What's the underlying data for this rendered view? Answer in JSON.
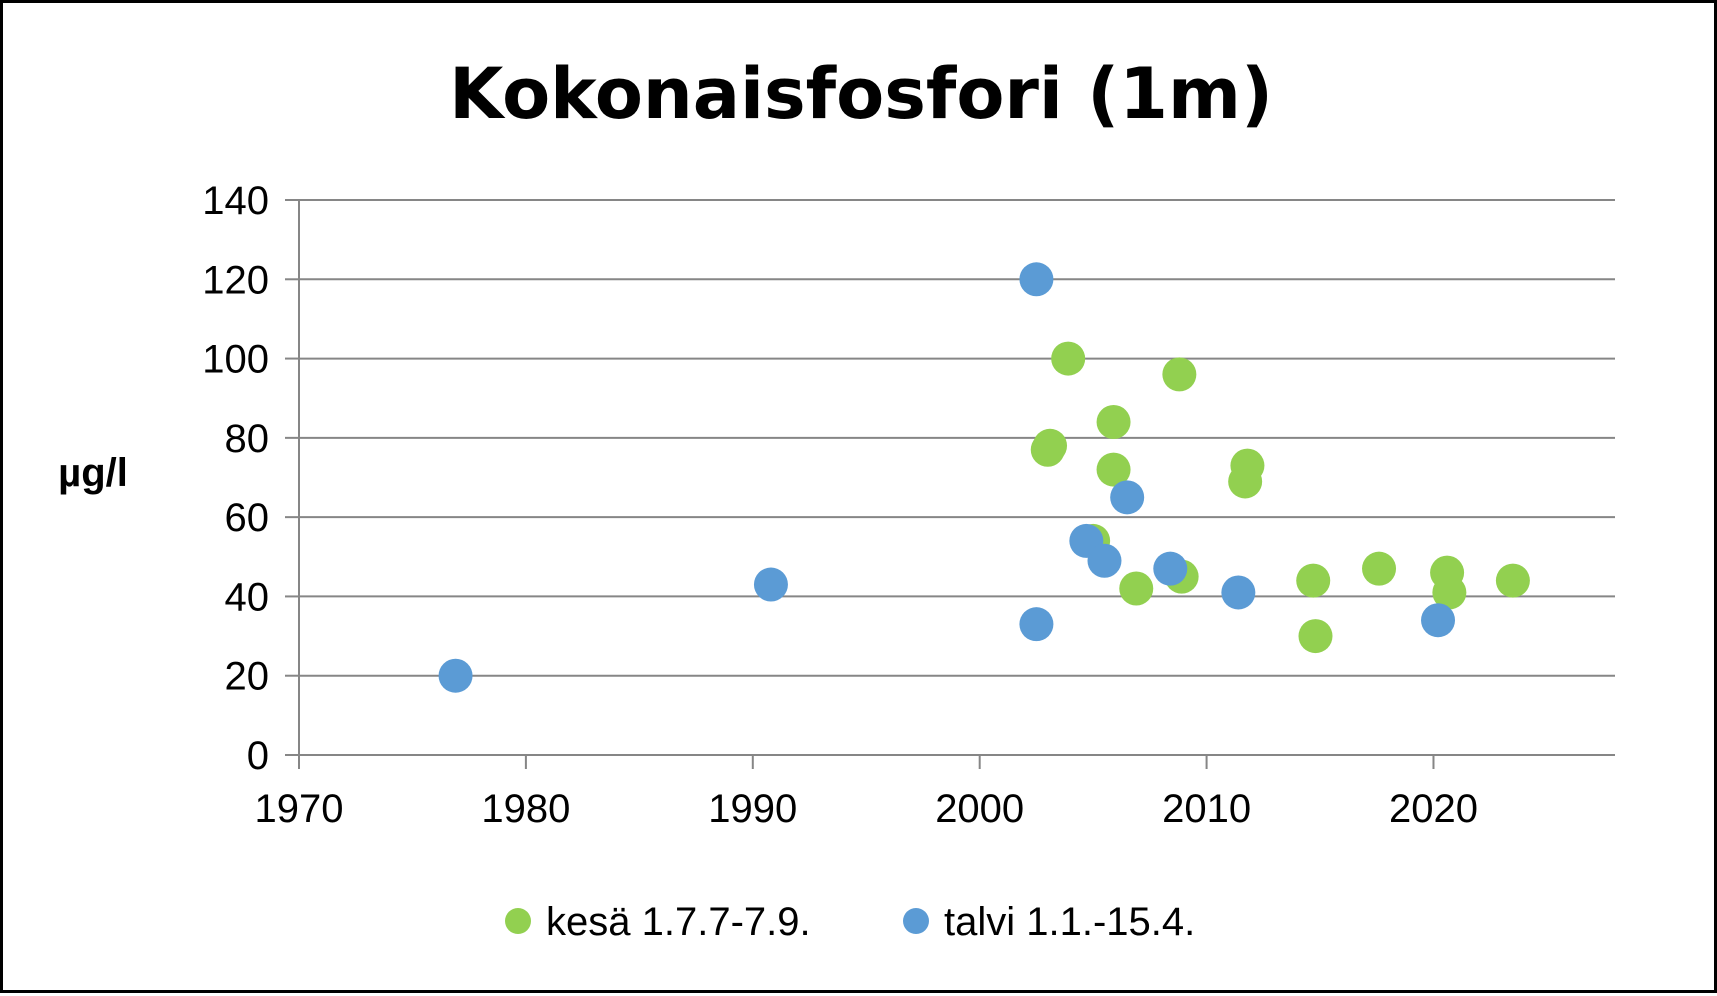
{
  "chart_data": {
    "type": "scatter",
    "title": "Kokonaisfosfori (1m)",
    "xlabel": "",
    "ylabel": "µg/l",
    "xlim": [
      1970,
      2028
    ],
    "ylim": [
      0,
      140
    ],
    "x_ticks": [
      "1970",
      "1980",
      "1990",
      "2000",
      "2010",
      "2020"
    ],
    "y_ticks": [
      "0",
      "20",
      "40",
      "60",
      "80",
      "100",
      "120",
      "140"
    ],
    "grid": true,
    "legend_position": "bottom",
    "series": [
      {
        "name": "kesä 1.7.7-7.9.",
        "color": "#92d050",
        "points": [
          [
            2003.0,
            77
          ],
          [
            2003.1,
            78
          ],
          [
            2003.9,
            100
          ],
          [
            2005.0,
            54
          ],
          [
            2005.9,
            84
          ],
          [
            2005.9,
            72
          ],
          [
            2006.9,
            42
          ],
          [
            2008.8,
            96
          ],
          [
            2008.9,
            45
          ],
          [
            2011.7,
            69
          ],
          [
            2011.8,
            73
          ],
          [
            2014.7,
            44
          ],
          [
            2014.8,
            30
          ],
          [
            2017.6,
            47
          ],
          [
            2020.6,
            46
          ],
          [
            2020.7,
            41
          ],
          [
            2023.5,
            44
          ]
        ]
      },
      {
        "name": "talvi 1.1.-15.4.",
        "color": "#5b9bd5",
        "points": [
          [
            1976.9,
            20
          ],
          [
            1990.8,
            43
          ],
          [
            2002.5,
            120
          ],
          [
            2002.5,
            33
          ],
          [
            2004.7,
            54
          ],
          [
            2005.5,
            49
          ],
          [
            2006.5,
            65
          ],
          [
            2008.4,
            47
          ],
          [
            2011.4,
            41
          ],
          [
            2020.2,
            34
          ]
        ]
      }
    ]
  }
}
